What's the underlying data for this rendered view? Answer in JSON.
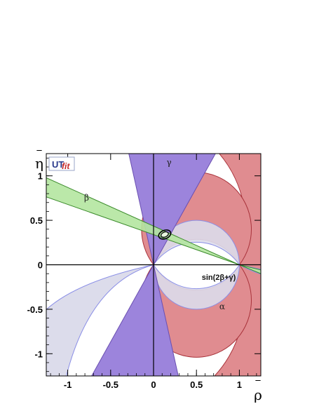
{
  "chart_data": {
    "type": "constraint-plot",
    "title": "",
    "logo": "UTfit",
    "xlabel": "ρ̄",
    "ylabel": "η̄",
    "xlim": [
      -1.25,
      1.25
    ],
    "ylim": [
      -1.25,
      1.25
    ],
    "x_ticks": [
      -1,
      -0.5,
      0,
      0.5,
      1
    ],
    "x_tick_labels": [
      "-1",
      "-0.5",
      "0",
      "0.5",
      "1"
    ],
    "y_ticks": [
      -1,
      -0.5,
      0,
      0.5,
      1
    ],
    "y_tick_labels": [
      "-1",
      "-0.5",
      "0",
      "0.5",
      "1"
    ],
    "constraints": [
      {
        "name": "γ",
        "kind": "cone",
        "apex": [
          0,
          0
        ],
        "angle_range_deg": [
          57,
          74
        ],
        "color": "#9c84dc",
        "label_at": [
          0.18,
          1.12
        ]
      },
      {
        "name": "β",
        "kind": "cone",
        "apex": [
          1,
          0
        ],
        "angle_range_deg": [
          156,
          162
        ],
        "color": "#b4e6a0",
        "label_at": [
          -0.78,
          0.72
        ]
      },
      {
        "name": "α",
        "kind": "lens",
        "color": "#e08c90",
        "label_at": [
          0.8,
          -0.5
        ]
      },
      {
        "name": "sin(2β+γ)",
        "kind": "lens",
        "color": "#dcdceb",
        "label_at": [
          0.76,
          -0.17
        ]
      }
    ],
    "best_fit": {
      "rho": 0.13,
      "eta": 0.34
    },
    "colors": {
      "gamma": "#9c84dc",
      "beta": "#b4e6a0",
      "alpha": "#e08c90",
      "sin2bg": "#dcdceb",
      "axes": "#000000"
    }
  }
}
